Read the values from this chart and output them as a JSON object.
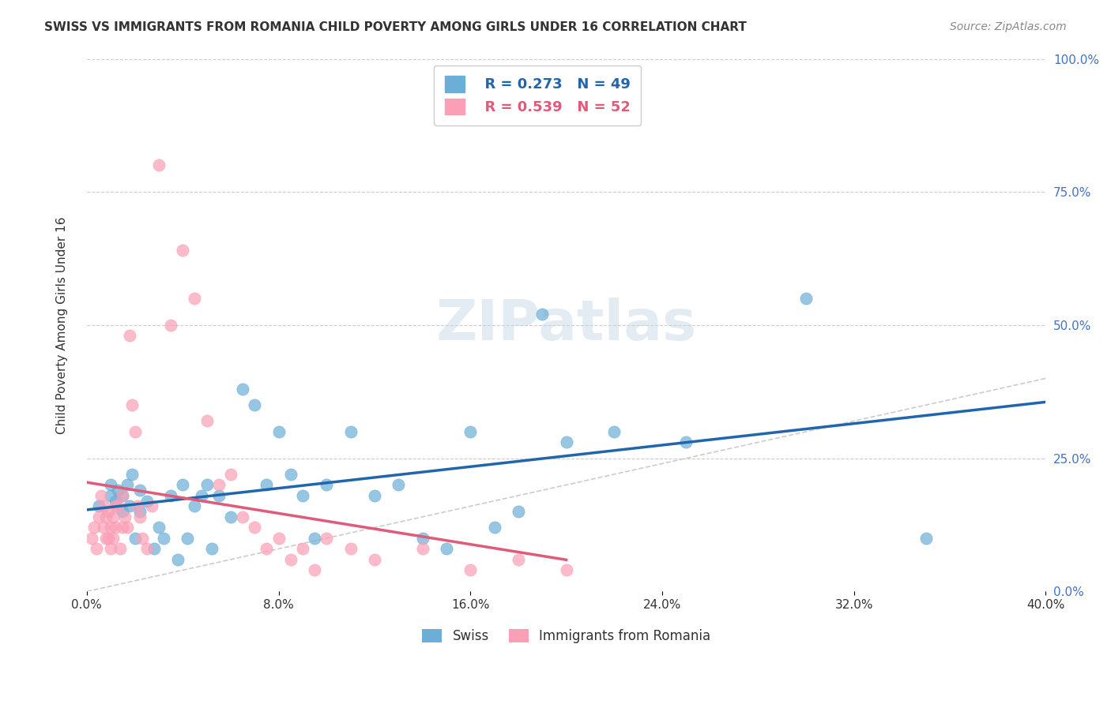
{
  "title": "SWISS VS IMMIGRANTS FROM ROMANIA CHILD POVERTY AMONG GIRLS UNDER 16 CORRELATION CHART",
  "source": "Source: ZipAtlas.com",
  "xlabel_bottom": "",
  "ylabel": "Child Poverty Among Girls Under 16",
  "x_min": 0.0,
  "x_max": 0.4,
  "y_min": 0.0,
  "y_max": 1.0,
  "x_ticks": [
    0.0,
    0.08,
    0.16,
    0.24,
    0.32,
    0.4
  ],
  "x_tick_labels": [
    "0.0%",
    "8.0%",
    "16.0%",
    "24.0%",
    "32.0%",
    "40.0%"
  ],
  "y_ticks_left": [
    0.0,
    0.25,
    0.5,
    0.75,
    1.0
  ],
  "y_tick_labels_left": [
    "",
    "",
    "",
    "",
    ""
  ],
  "y_ticks_right": [
    0.0,
    0.25,
    0.5,
    0.75,
    1.0
  ],
  "y_tick_labels_right": [
    "0.0%",
    "25.0%",
    "50.0%",
    "75.0%",
    "100.0%"
  ],
  "swiss_R": 0.273,
  "swiss_N": 49,
  "romania_R": 0.539,
  "romania_N": 52,
  "swiss_color": "#6baed6",
  "romania_color": "#fa9fb5",
  "swiss_line_color": "#2166ac",
  "romania_line_color": "#e05a7a",
  "diagonal_color": "#cccccc",
  "legend_x_label": "Swiss",
  "legend_r_label": "Immigrants from Romania",
  "watermark": "ZIPatlas",
  "swiss_x": [
    0.005,
    0.01,
    0.01,
    0.012,
    0.013,
    0.015,
    0.015,
    0.017,
    0.018,
    0.019,
    0.02,
    0.022,
    0.022,
    0.025,
    0.028,
    0.03,
    0.032,
    0.035,
    0.038,
    0.04,
    0.042,
    0.045,
    0.048,
    0.05,
    0.052,
    0.055,
    0.06,
    0.065,
    0.07,
    0.075,
    0.08,
    0.085,
    0.09,
    0.095,
    0.1,
    0.11,
    0.12,
    0.13,
    0.14,
    0.15,
    0.16,
    0.17,
    0.18,
    0.19,
    0.2,
    0.22,
    0.25,
    0.3,
    0.35
  ],
  "swiss_y": [
    0.16,
    0.18,
    0.2,
    0.17,
    0.19,
    0.18,
    0.15,
    0.2,
    0.16,
    0.22,
    0.1,
    0.15,
    0.19,
    0.17,
    0.08,
    0.12,
    0.1,
    0.18,
    0.06,
    0.2,
    0.1,
    0.16,
    0.18,
    0.2,
    0.08,
    0.18,
    0.14,
    0.38,
    0.35,
    0.2,
    0.3,
    0.22,
    0.18,
    0.1,
    0.2,
    0.3,
    0.18,
    0.2,
    0.1,
    0.08,
    0.3,
    0.12,
    0.15,
    0.52,
    0.28,
    0.3,
    0.28,
    0.55,
    0.1
  ],
  "romania_x": [
    0.002,
    0.003,
    0.004,
    0.005,
    0.006,
    0.007,
    0.007,
    0.008,
    0.008,
    0.009,
    0.009,
    0.01,
    0.01,
    0.011,
    0.011,
    0.012,
    0.012,
    0.013,
    0.014,
    0.015,
    0.015,
    0.016,
    0.017,
    0.018,
    0.019,
    0.02,
    0.021,
    0.022,
    0.023,
    0.025,
    0.027,
    0.03,
    0.035,
    0.04,
    0.045,
    0.05,
    0.055,
    0.06,
    0.065,
    0.07,
    0.075,
    0.08,
    0.085,
    0.09,
    0.095,
    0.1,
    0.11,
    0.12,
    0.14,
    0.16,
    0.18,
    0.2
  ],
  "romania_y": [
    0.1,
    0.12,
    0.08,
    0.14,
    0.18,
    0.12,
    0.16,
    0.14,
    0.1,
    0.15,
    0.1,
    0.12,
    0.08,
    0.1,
    0.14,
    0.16,
    0.12,
    0.16,
    0.08,
    0.18,
    0.12,
    0.14,
    0.12,
    0.48,
    0.35,
    0.3,
    0.16,
    0.14,
    0.1,
    0.08,
    0.16,
    0.8,
    0.5,
    0.64,
    0.55,
    0.32,
    0.2,
    0.22,
    0.14,
    0.12,
    0.08,
    0.1,
    0.06,
    0.08,
    0.04,
    0.1,
    0.08,
    0.06,
    0.08,
    0.04,
    0.06,
    0.04
  ]
}
